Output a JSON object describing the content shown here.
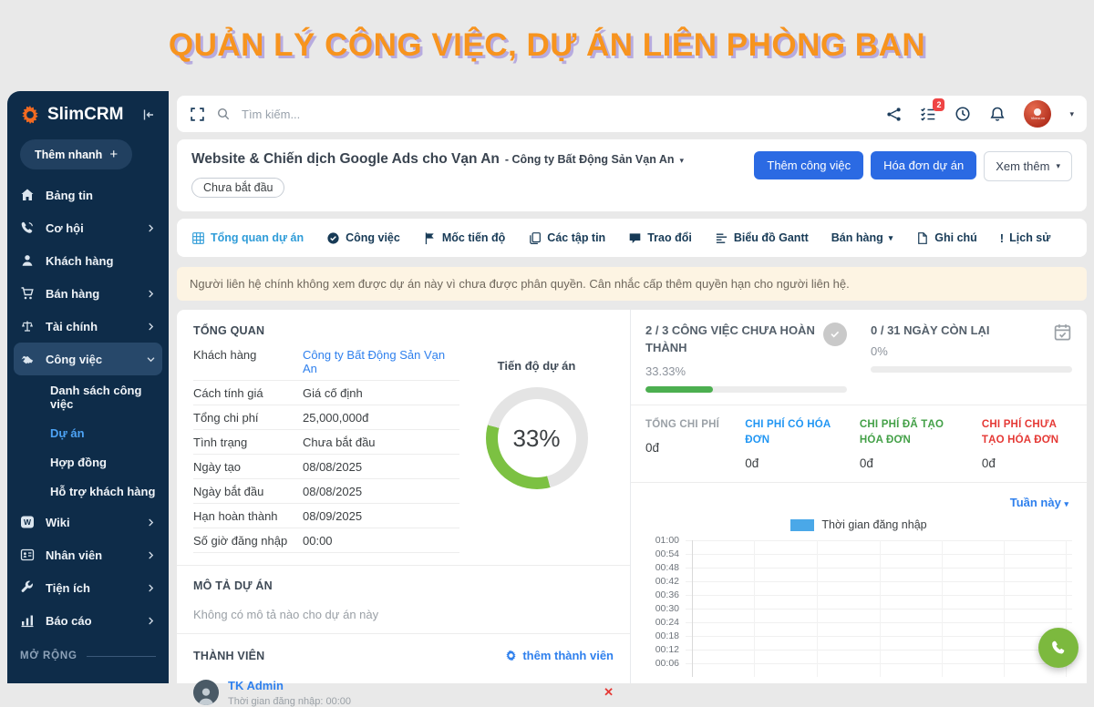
{
  "banner": {
    "title": "QUẢN LÝ CÔNG VIỆC, DỰ ÁN LIÊN PHÒNG BAN"
  },
  "colors": {
    "banner_orange": "#f7941e",
    "banner_shadow": "#b7abdf",
    "sidebar_bg": "#0e2c49",
    "sidebar_active_bg": "#27486a",
    "accent_blue": "#2b6ae3",
    "active_tab_blue": "#2f9cd8",
    "link_blue": "#2f80ed",
    "donut_green": "#7cc142",
    "donut_track": "#e4e4e4",
    "bar_green": "#4caf50",
    "cost_gray": "#9aa0a6",
    "cost_blue": "#2196f3",
    "cost_green": "#43a047",
    "cost_red": "#e53935",
    "legend_blue": "#4aa8e8",
    "fab_green": "#7cb93e",
    "badge_red": "#ef4444",
    "warning_bg": "#fdf4e3"
  },
  "sidebar": {
    "brand": "SlimCRM",
    "quick_add": "Thêm nhanh",
    "items": [
      {
        "label": "Bảng tin"
      },
      {
        "label": "Cơ hội"
      },
      {
        "label": "Khách hàng"
      },
      {
        "label": "Bán hàng"
      },
      {
        "label": "Tài chính"
      },
      {
        "label": "Công việc"
      },
      {
        "label": "Wiki"
      },
      {
        "label": "Nhân viên"
      },
      {
        "label": "Tiện ích"
      },
      {
        "label": "Báo cáo"
      }
    ],
    "submenu": [
      {
        "label": "Danh sách công việc"
      },
      {
        "label": "Dự án"
      },
      {
        "label": "Hợp đồng"
      },
      {
        "label": "Hỗ trợ khách hàng"
      }
    ],
    "expand_label": "MỞ RỘNG"
  },
  "topbar": {
    "search_placeholder": "Tìm kiếm...",
    "notification_count": "2",
    "avatar_text": "Vinno.vn"
  },
  "project": {
    "title": "Website & Chiến dịch Google Ads cho Vạn An",
    "subtitle": "- Công ty Bất Động Sản Vạn An",
    "status": "Chưa bắt đầu",
    "btn_add_task": "Thêm công việc",
    "btn_invoice": "Hóa đơn dự án",
    "btn_more": "Xem thêm"
  },
  "tabs": [
    {
      "label": "Tổng quan dự án"
    },
    {
      "label": "Công việc"
    },
    {
      "label": "Mốc tiến độ"
    },
    {
      "label": "Các tập tin"
    },
    {
      "label": "Trao đổi"
    },
    {
      "label": "Biểu đồ Gantt"
    },
    {
      "label": "Bán hàng"
    },
    {
      "label": "Ghi chú"
    },
    {
      "label": "Lịch sử"
    }
  ],
  "warning": "Người liên hệ chính không xem được dự án này vì chưa được phân quyền. Cân nhắc cấp thêm quyền hạn cho người liên hệ.",
  "overview": {
    "heading": "TỔNG QUAN",
    "rows": [
      {
        "label": "Khách hàng",
        "value": "Công ty Bất Động Sản Vạn An"
      },
      {
        "label": "Cách tính giá",
        "value": "Giá cố định"
      },
      {
        "label": "Tổng chi phí",
        "value": "25,000,000đ"
      },
      {
        "label": "Tình trạng",
        "value": "Chưa bắt đầu"
      },
      {
        "label": "Ngày tạo",
        "value": "08/08/2025"
      },
      {
        "label": "Ngày bắt đầu",
        "value": "08/08/2025"
      },
      {
        "label": "Hạn hoàn thành",
        "value": "08/09/2025"
      },
      {
        "label": "Số giờ đăng nhập",
        "value": "00:00"
      }
    ],
    "progress": {
      "label": "Tiến độ dự án",
      "percent_text": "33%",
      "percent_value": 33.33
    }
  },
  "description": {
    "heading": "MÔ TẢ DỰ ÁN",
    "empty_text": "Không có mô tả nào cho dự án này"
  },
  "members": {
    "heading": "THÀNH VIÊN",
    "add_link": "thêm thành viên",
    "list": [
      {
        "name": "TK Admin",
        "login_time": "Thời gian đăng nhập: 00:00"
      }
    ]
  },
  "stats": {
    "tasks": {
      "title": "2 / 3 CÔNG VIỆC CHƯA HOÀN THÀNH",
      "percent_text": "33.33%",
      "percent_value": 33.33
    },
    "days": {
      "title": "0 / 31 NGÀY CÒN LẠI",
      "percent_text": "0%",
      "percent_value": 0
    },
    "costs": [
      {
        "label": "TỔNG CHI PHÍ",
        "value": "0đ"
      },
      {
        "label": "CHI PHÍ CÓ HÓA ĐƠN",
        "value": "0đ"
      },
      {
        "label": "CHI PHÍ ĐÃ TẠO HÓA ĐƠN",
        "value": "0đ"
      },
      {
        "label": "CHI PHÍ CHƯA TẠO HÓA ĐƠN",
        "value": "0đ"
      }
    ]
  },
  "time_chart": {
    "type": "bar",
    "filter": "Tuần này",
    "legend": "Thời gian đăng nhập",
    "y_ticks": [
      "01:00",
      "00:54",
      "00:48",
      "00:42",
      "00:36",
      "00:30",
      "00:24",
      "00:18",
      "00:12",
      "00:06"
    ],
    "series": []
  }
}
